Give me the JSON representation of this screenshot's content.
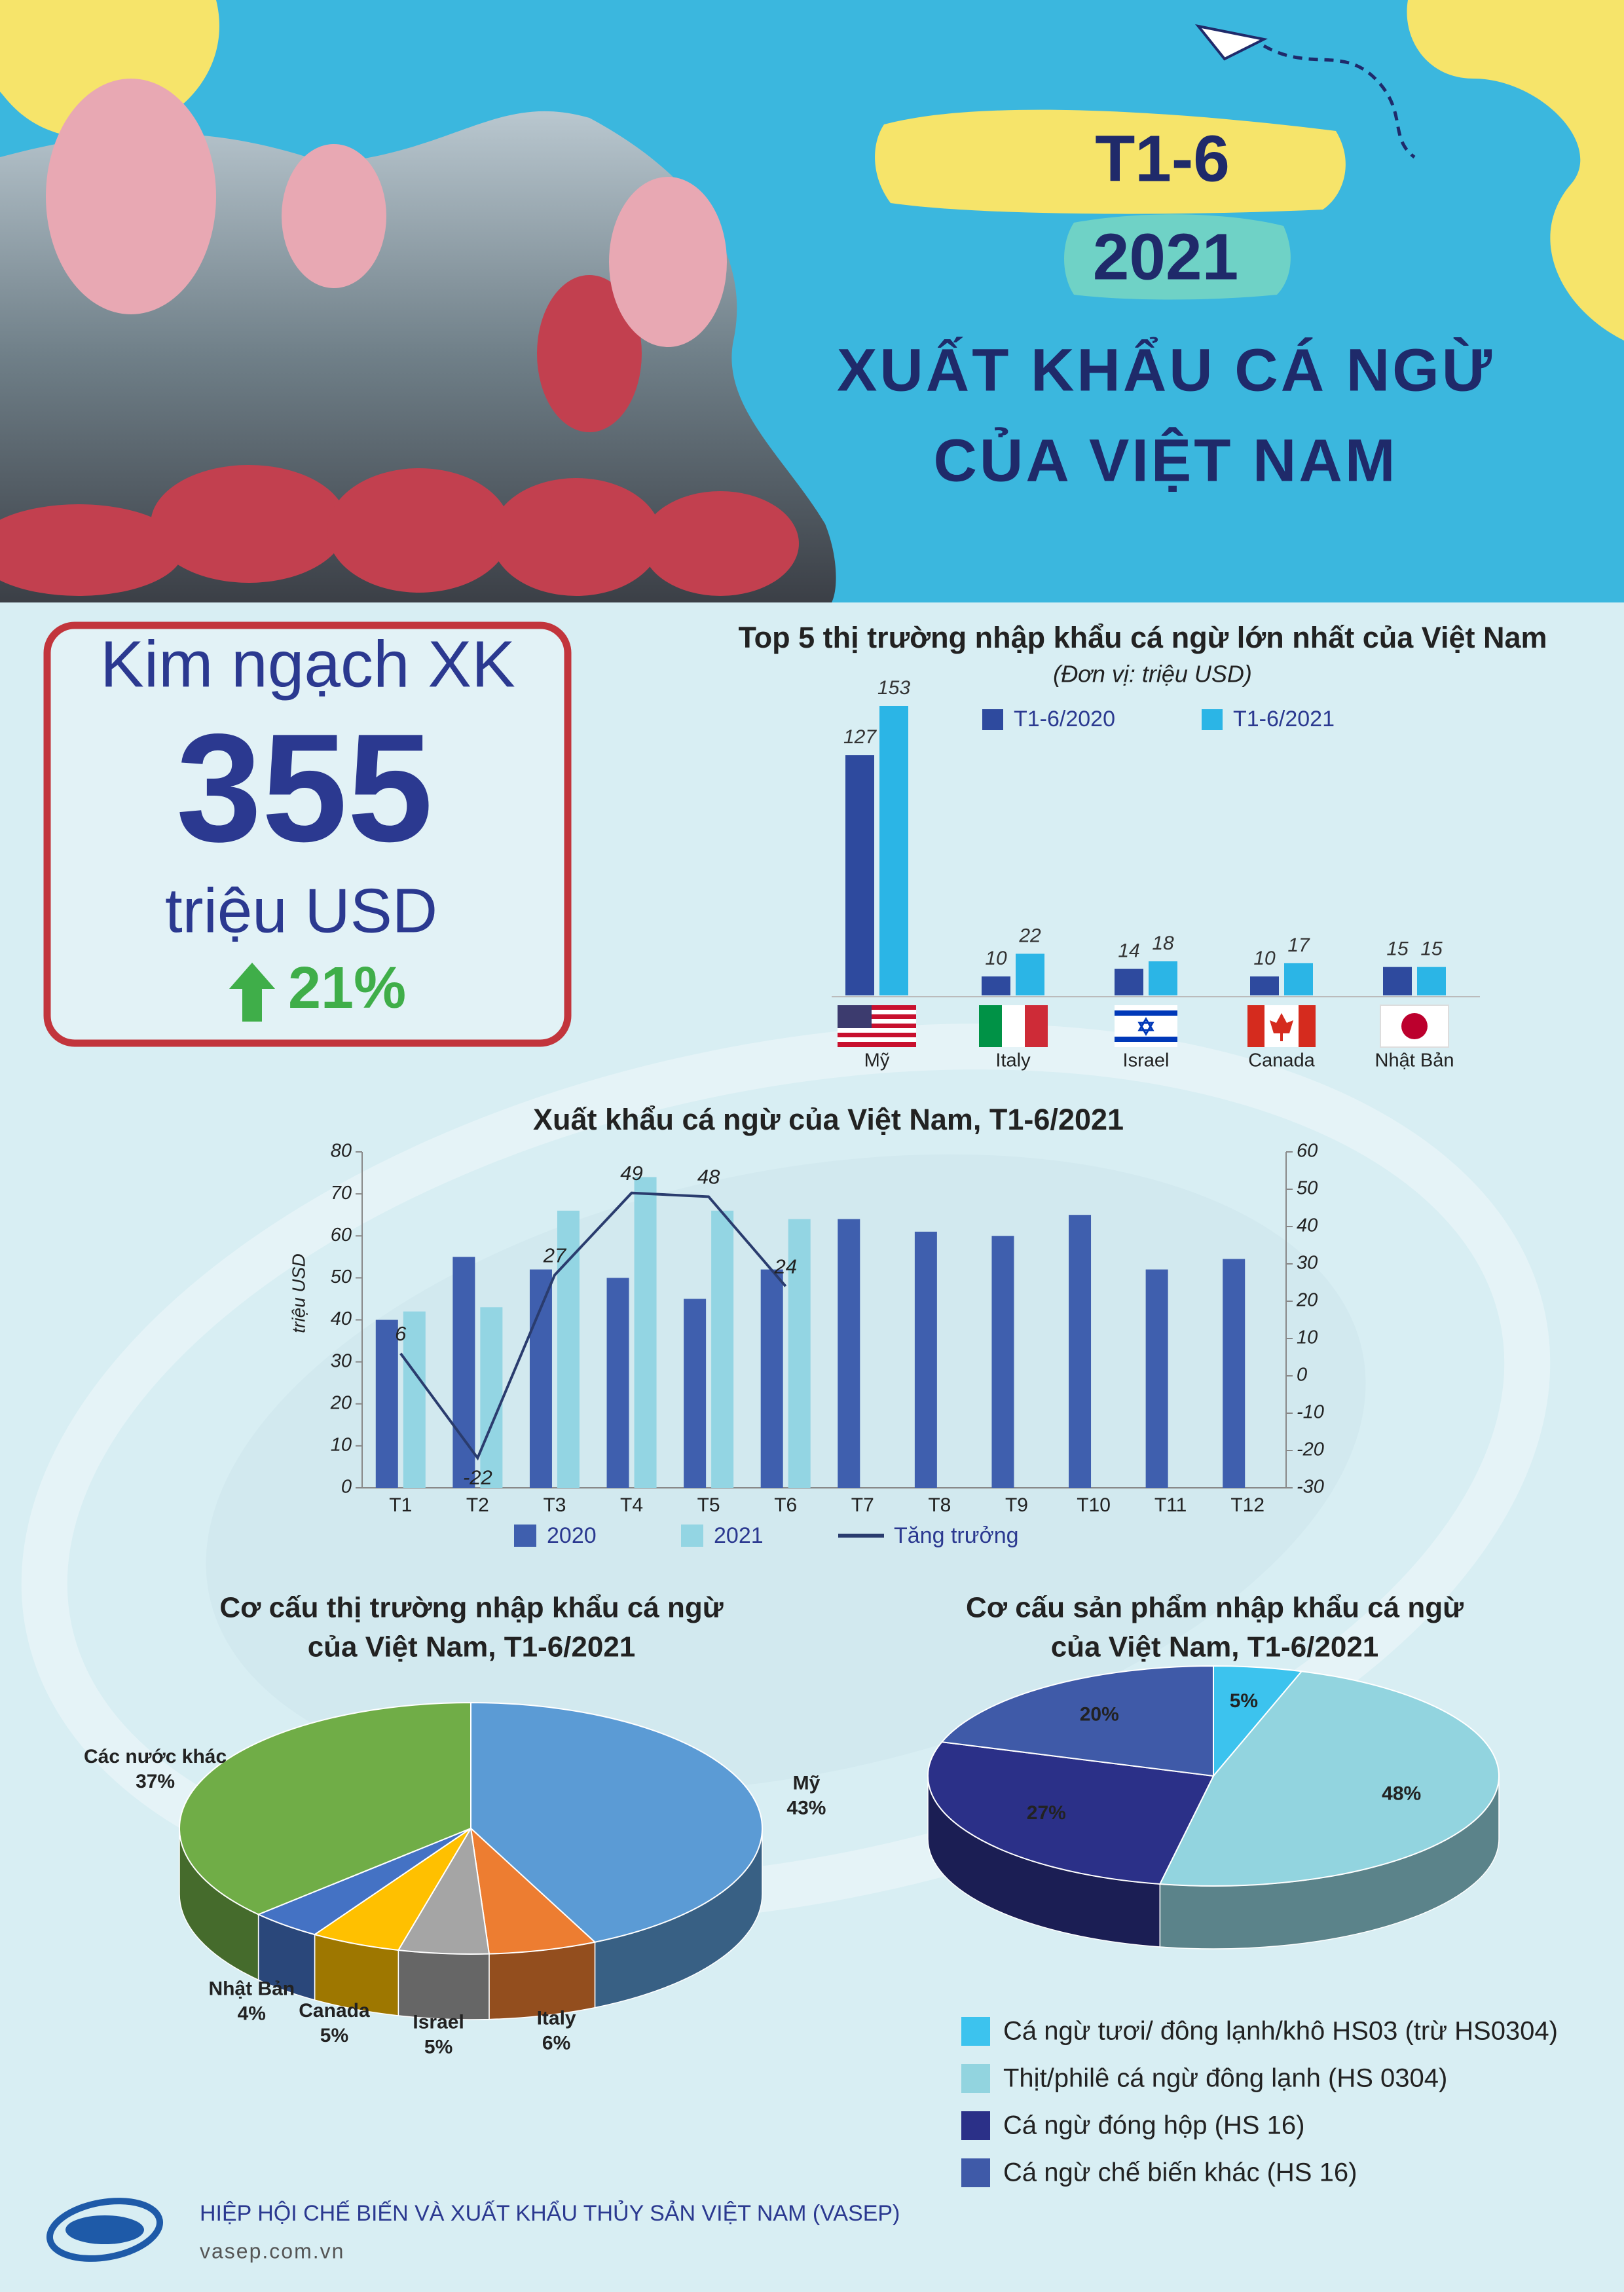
{
  "header": {
    "period": "T1-6",
    "year": "2021",
    "title_line1": "XUẤT KHẨU CÁ NGỪ",
    "title_line2": "CỦA VIỆT NAM"
  },
  "kpi": {
    "label": "Kim ngạch XK",
    "value": "355",
    "unit": "triệu USD",
    "growth": "21%"
  },
  "chart_data": [
    {
      "type": "bar",
      "title": "Top 5 thị trường nhập khẩu cá ngừ lớn nhất của Việt Nam",
      "subtitle": "(Đơn vị: triệu USD)",
      "categories": [
        "Mỹ",
        "Italy",
        "Israel",
        "Canada",
        "Nhật Bản"
      ],
      "series": [
        {
          "name": "T1-6/2020",
          "color": "#2e4a9e",
          "values": [
            127,
            10,
            14,
            10,
            15
          ]
        },
        {
          "name": "T1-6/2021",
          "color": "#2bb5e6",
          "values": [
            153,
            22,
            18,
            17,
            15
          ]
        }
      ]
    },
    {
      "type": "combo",
      "title": "Xuất khẩu cá ngừ của Việt Nam, T1-6/2021",
      "y_label": "triệu USD",
      "categories": [
        "T1",
        "T2",
        "T3",
        "T4",
        "T5",
        "T6",
        "T7",
        "T8",
        "T9",
        "T10",
        "T11",
        "T12"
      ],
      "series": [
        {
          "name": "2020",
          "type": "bar",
          "color": "#3f5fae",
          "values": [
            40,
            55,
            52,
            50,
            45,
            52,
            64,
            61,
            60,
            65,
            52,
            54.5
          ]
        },
        {
          "name": "2021",
          "type": "bar",
          "color": "#93d5e3",
          "values": [
            42,
            43,
            66,
            74,
            66,
            64,
            null,
            null,
            null,
            null,
            null,
            null
          ]
        },
        {
          "name": "Tăng trưởng",
          "type": "line",
          "axis": "y2",
          "color": "#2a3c6e",
          "values": [
            6,
            -22,
            27,
            49,
            48,
            24,
            null,
            null,
            null,
            null,
            null,
            null
          ]
        }
      ],
      "ylim": [
        0,
        80
      ],
      "yticks": [
        0,
        10,
        20,
        30,
        40,
        50,
        60,
        70,
        80
      ],
      "y2lim": [
        -30,
        60
      ],
      "y2ticks": [
        -30,
        -20,
        -10,
        0,
        10,
        20,
        30,
        40,
        50,
        60
      ]
    },
    {
      "type": "pie",
      "title": [
        "Cơ cấu thị trường nhập khẩu cá ngừ",
        "của Việt Nam, T1-6/2021"
      ],
      "categories": [
        "Mỹ",
        "Italy",
        "Israel",
        "Canada",
        "Nhật Bản",
        "Các nước khác"
      ],
      "values": [
        43,
        6,
        5,
        5,
        4,
        37
      ],
      "value_labels": [
        "43%",
        "6%",
        "5%",
        "5%",
        "4%",
        "37%"
      ],
      "colors": [
        "#5b9bd5",
        "#ed7d31",
        "#a5a5a5",
        "#ffc000",
        "#4472c4",
        "#70ad47"
      ]
    },
    {
      "type": "pie",
      "title": [
        "Cơ cấu sản phẩm nhập khẩu cá ngừ",
        "của Việt Nam, T1-6/2021"
      ],
      "categories": [
        "Cá ngừ tươi/ đông lạnh/khô HS03 (trừ HS0304)",
        "Thịt/philê cá ngừ đông lạnh (HS 0304)",
        "Cá ngừ đóng hộp (HS 16)",
        "Cá ngừ chế biến khác (HS 16)"
      ],
      "values": [
        5,
        48,
        27,
        20
      ],
      "value_labels": [
        "5%",
        "48%",
        "27%",
        "20%"
      ],
      "colors": [
        "#3cc3ee",
        "#92d4df",
        "#2b3088",
        "#3f5aa8"
      ]
    }
  ],
  "footer": {
    "organization": "HIỆP HỘI CHẾ BIẾN VÀ XUẤT KHẨU THỦY SẢN VIỆT NAM (VASEP)",
    "website": "vasep.com.vn"
  }
}
